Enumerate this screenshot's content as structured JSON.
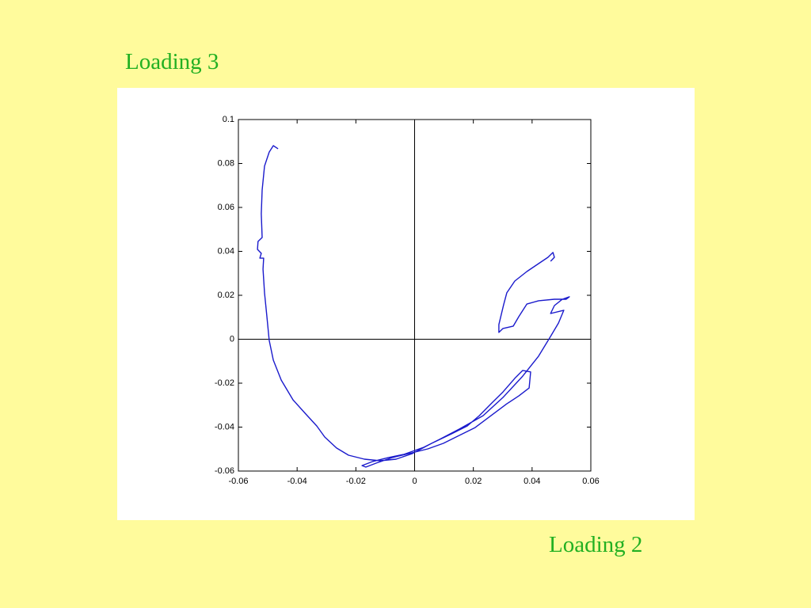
{
  "chart_data": {
    "type": "line",
    "ylabel": "Loading 3",
    "xlabel": "Loading 2",
    "x": [
      -0.0465,
      -0.0481,
      -0.0495,
      -0.0511,
      -0.0519,
      -0.0522,
      -0.0519,
      -0.0533,
      -0.0535,
      -0.0522,
      -0.0527,
      -0.0514,
      -0.0516,
      -0.0511,
      -0.0503,
      -0.0495,
      -0.0481,
      -0.0454,
      -0.0414,
      -0.0373,
      -0.0333,
      -0.0306,
      -0.0266,
      -0.0225,
      -0.0171,
      -0.0117,
      -0.0063,
      -0.0009,
      0.0058,
      0.0125,
      0.0179,
      0.022,
      0.026,
      0.0301,
      0.0341,
      0.0368,
      0.0395,
      0.039,
      0.0355,
      0.0314,
      0.026,
      0.0206,
      0.0152,
      0.0098,
      0.0045,
      -0.0009,
      -0.0077,
      -0.0131,
      -0.0166,
      -0.0179,
      -0.0144,
      -0.009,
      -0.0036,
      0.0031,
      0.0085,
      0.0152,
      0.0233,
      0.0301,
      0.0368,
      0.0422,
      0.0463,
      0.049,
      0.0508,
      0.0463,
      0.0476,
      0.0503,
      0.0527,
      0.0516,
      0.0476,
      0.0422,
      0.0382,
      0.0355,
      0.0336,
      0.0301,
      0.0287,
      0.0287,
      0.0303,
      0.0314,
      0.0341,
      0.0382,
      0.0422,
      0.0454,
      0.0471,
      0.0476,
      0.0463
    ],
    "values": [
      0.0867,
      0.0881,
      0.0852,
      0.0788,
      0.0679,
      0.0571,
      0.0463,
      0.0445,
      0.0409,
      0.0391,
      0.0369,
      0.0369,
      0.0319,
      0.0211,
      0.0103,
      -0.0005,
      -0.0095,
      -0.0186,
      -0.0276,
      -0.0337,
      -0.0395,
      -0.0445,
      -0.0495,
      -0.0528,
      -0.0546,
      -0.0553,
      -0.0546,
      -0.0521,
      -0.0474,
      -0.0431,
      -0.0395,
      -0.0348,
      -0.0294,
      -0.024,
      -0.0178,
      -0.0142,
      -0.0149,
      -0.0222,
      -0.0258,
      -0.0294,
      -0.0348,
      -0.0402,
      -0.0438,
      -0.0474,
      -0.0499,
      -0.0517,
      -0.0539,
      -0.0564,
      -0.0582,
      -0.0575,
      -0.0557,
      -0.0539,
      -0.0524,
      -0.0492,
      -0.0456,
      -0.0409,
      -0.0348,
      -0.0265,
      -0.0168,
      -0.0077,
      0.0013,
      0.0074,
      0.0132,
      0.0117,
      0.0153,
      0.0182,
      0.0193,
      0.0182,
      0.0182,
      0.0175,
      0.016,
      0.0103,
      0.006,
      0.0049,
      0.0031,
      0.0067,
      0.0157,
      0.0211,
      0.0265,
      0.0308,
      0.0344,
      0.0373,
      0.0395,
      0.0373,
      0.0355
    ],
    "color": "#1a1acc",
    "xlim": [
      -0.06,
      0.06
    ],
    "xticks": [
      -0.06,
      -0.04,
      -0.02,
      0,
      0.02,
      0.04,
      0.06
    ],
    "ylim": [
      -0.06,
      0.1
    ],
    "yticks": [
      -0.06,
      -0.04,
      -0.02,
      0,
      0.02,
      0.04,
      0.06,
      0.08,
      0.1
    ],
    "zero_lines": true,
    "grid": false
  }
}
